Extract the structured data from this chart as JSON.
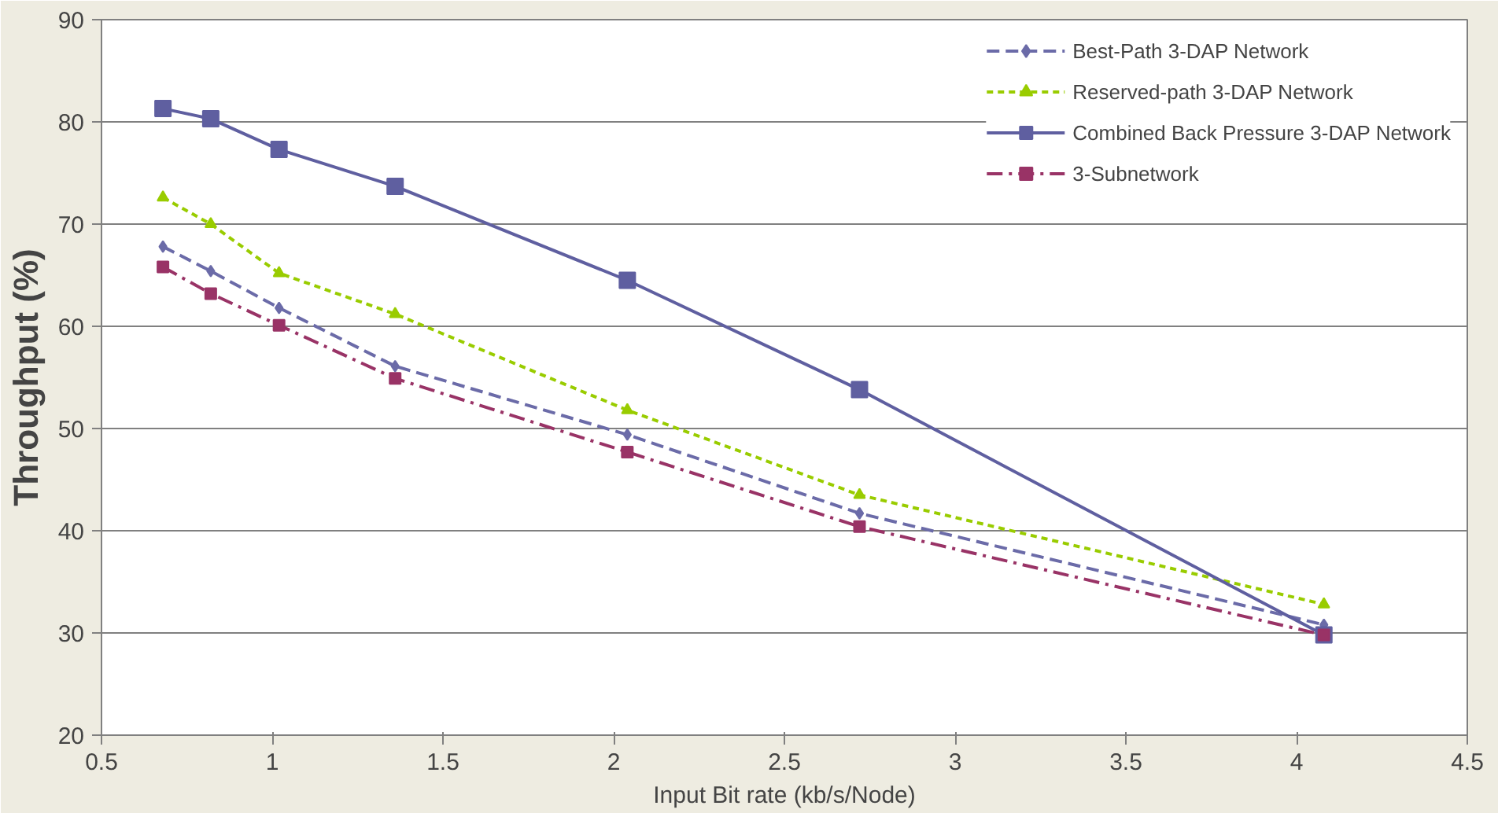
{
  "chart_data": {
    "type": "line",
    "xlabel": "Input Bit rate (kb/s/Node)",
    "ylabel": "Throughput (%)",
    "x": [
      0.68,
      0.82,
      1.02,
      1.36,
      2.04,
      2.72,
      4.08
    ],
    "xlim": [
      0.5,
      4.5
    ],
    "xticks": [
      0.5,
      1,
      1.5,
      2,
      2.5,
      3,
      3.5,
      4,
      4.5
    ],
    "ylim": [
      20,
      90
    ],
    "yticks": [
      20,
      30,
      40,
      50,
      60,
      70,
      80,
      90
    ],
    "grid": "y",
    "legend": "top right",
    "series": [
      {
        "name": "Best-Path 3-DAP Network",
        "color": "#6b6ba8",
        "marker": "diamond",
        "line_style": "dashed",
        "values": [
          67.8,
          65.4,
          61.8,
          56.1,
          49.4,
          41.7,
          30.8
        ]
      },
      {
        "name": "Reserved-path 3-DAP Network",
        "color": "#99cc00",
        "marker": "triangle",
        "line_style": "dotted",
        "values": [
          72.6,
          70.0,
          65.2,
          61.2,
          51.8,
          43.5,
          32.8
        ]
      },
      {
        "name": "Combined Back Pressure 3-DAP Network",
        "color": "#5f5fa0",
        "marker": "square",
        "line_style": "solid",
        "values": [
          81.3,
          80.3,
          77.3,
          73.7,
          64.5,
          53.8,
          29.8
        ]
      },
      {
        "name": "3-Subnetwork",
        "color": "#993366",
        "marker": "square",
        "line_style": "dashdot",
        "values": [
          65.8,
          63.2,
          60.1,
          54.9,
          47.7,
          40.4,
          29.8
        ]
      }
    ]
  }
}
